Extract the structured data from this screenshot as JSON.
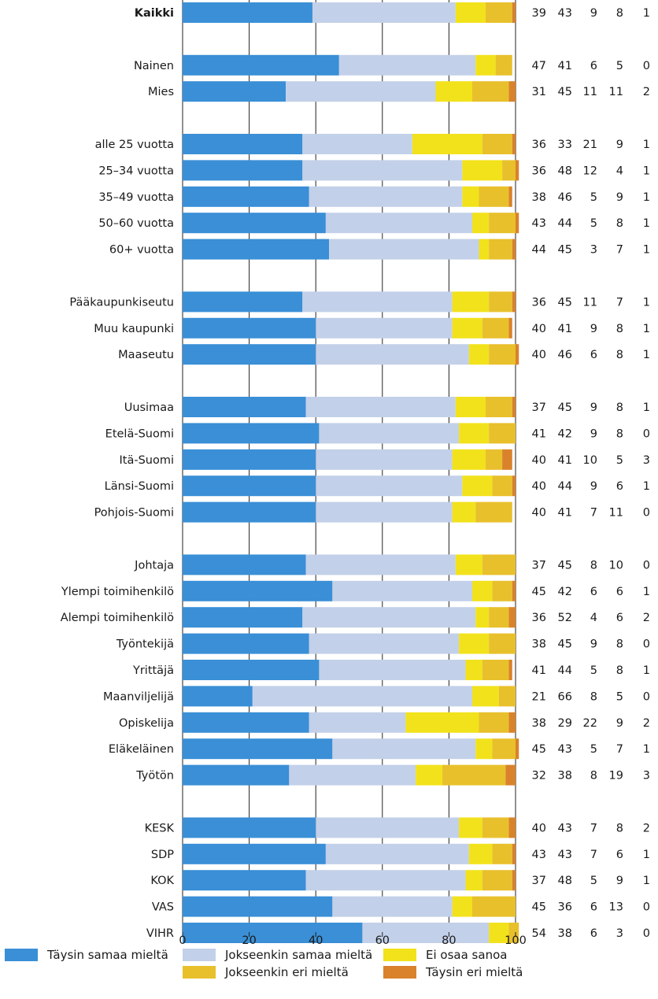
{
  "chart_data": {
    "type": "bar",
    "stacked": true,
    "orientation": "horizontal",
    "xlim": [
      0,
      100
    ],
    "x_ticks": [
      "0",
      "20",
      "40",
      "60",
      "80",
      "100"
    ],
    "grid": true,
    "legend_position": "bottom",
    "series": [
      {
        "name": "Täysin samaa mieltä",
        "color": "#3a8fd6"
      },
      {
        "name": "Jokseenkin samaa mieltä",
        "color": "#c3d0e9"
      },
      {
        "name": "Ei osaa sanoa",
        "color": "#f2e21c"
      },
      {
        "name": "Jokseenkin eri mieltä",
        "color": "#e8c02c"
      },
      {
        "name": "Täysin eri mieltä",
        "color": "#d9822b"
      }
    ],
    "legend_order": [
      0,
      1,
      2,
      3,
      4
    ],
    "groups": [
      {
        "rows": [
          {
            "label": "Kaikki",
            "bold": true,
            "values": [
              39,
              43,
              9,
              8,
              1
            ]
          }
        ]
      },
      {
        "rows": [
          {
            "label": "Nainen",
            "values": [
              47,
              41,
              6,
              5,
              0
            ]
          },
          {
            "label": "Mies",
            "values": [
              31,
              45,
              11,
              11,
              2
            ]
          }
        ]
      },
      {
        "rows": [
          {
            "label": "alle 25 vuotta",
            "values": [
              36,
              33,
              21,
              9,
              1
            ]
          },
          {
            "label": "25–34 vuotta",
            "values": [
              36,
              48,
              12,
              4,
              1
            ]
          },
          {
            "label": "35–49 vuotta",
            "values": [
              38,
              46,
              5,
              9,
              1
            ]
          },
          {
            "label": "50–60 vuotta",
            "values": [
              43,
              44,
              5,
              8,
              1
            ]
          },
          {
            "label": "60+ vuotta",
            "values": [
              44,
              45,
              3,
              7,
              1
            ]
          }
        ]
      },
      {
        "rows": [
          {
            "label": "Pääkaupunkiseutu",
            "values": [
              36,
              45,
              11,
              7,
              1
            ]
          },
          {
            "label": "Muu kaupunki",
            "values": [
              40,
              41,
              9,
              8,
              1
            ]
          },
          {
            "label": "Maaseutu",
            "values": [
              40,
              46,
              6,
              8,
              1
            ]
          }
        ]
      },
      {
        "rows": [
          {
            "label": "Uusimaa",
            "values": [
              37,
              45,
              9,
              8,
              1
            ]
          },
          {
            "label": "Etelä-Suomi",
            "values": [
              41,
              42,
              9,
              8,
              0
            ]
          },
          {
            "label": "Itä-Suomi",
            "values": [
              40,
              41,
              10,
              5,
              3
            ]
          },
          {
            "label": "Länsi-Suomi",
            "values": [
              40,
              44,
              9,
              6,
              1
            ]
          },
          {
            "label": "Pohjois-Suomi",
            "values": [
              40,
              41,
              7,
              11,
              0
            ]
          }
        ]
      },
      {
        "rows": [
          {
            "label": "Johtaja",
            "values": [
              37,
              45,
              8,
              10,
              0
            ]
          },
          {
            "label": "Ylempi toimihenkilö",
            "values": [
              45,
              42,
              6,
              6,
              1
            ]
          },
          {
            "label": "Alempi toimihenkilö",
            "values": [
              36,
              52,
              4,
              6,
              2
            ]
          },
          {
            "label": "Työntekijä",
            "values": [
              38,
              45,
              9,
              8,
              0
            ]
          },
          {
            "label": "Yrittäjä",
            "values": [
              41,
              44,
              5,
              8,
              1
            ]
          },
          {
            "label": "Maanviljelijä",
            "values": [
              21,
              66,
              8,
              5,
              0
            ]
          },
          {
            "label": "Opiskelija",
            "values": [
              38,
              29,
              22,
              9,
              2
            ]
          },
          {
            "label": "Eläkeläinen",
            "values": [
              45,
              43,
              5,
              7,
              1
            ]
          },
          {
            "label": "Työtön",
            "values": [
              32,
              38,
              8,
              19,
              3
            ]
          }
        ]
      },
      {
        "rows": [
          {
            "label": "KESK",
            "values": [
              40,
              43,
              7,
              8,
              2
            ]
          },
          {
            "label": "SDP",
            "values": [
              43,
              43,
              7,
              6,
              1
            ]
          },
          {
            "label": "KOK",
            "values": [
              37,
              48,
              5,
              9,
              1
            ]
          },
          {
            "label": "VAS",
            "values": [
              45,
              36,
              6,
              13,
              0
            ]
          },
          {
            "label": "VIHR",
            "values": [
              54,
              38,
              6,
              3,
              0
            ]
          }
        ]
      }
    ]
  }
}
